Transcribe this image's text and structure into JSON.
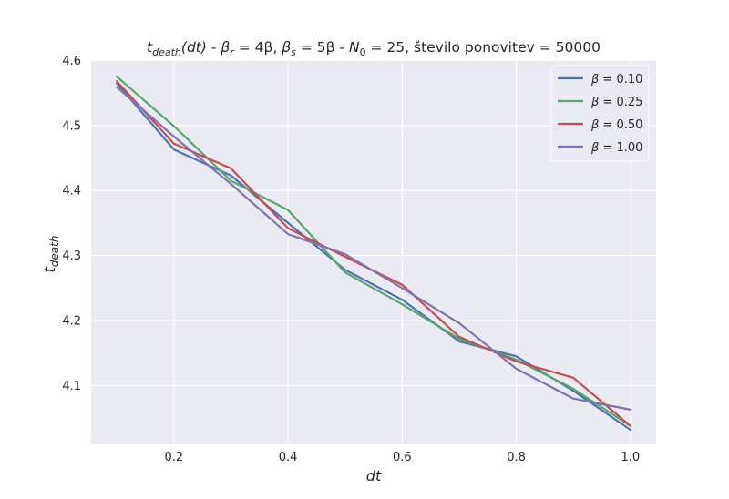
{
  "chart_data": {
    "type": "line",
    "title": "t_death(dt) - β_r = 4β, β_s = 5β - N_0 =  25, število ponovitev  = 50000",
    "title_parts": {
      "t": "t",
      "death_sub": "death",
      "dt_paren": "(dt)",
      "mid1": " - ",
      "beta_r": "β",
      "r_sub": "r",
      "eq_4beta": " = 4β, ",
      "beta_s": "β",
      "s_sub": "s",
      "eq_5beta": " = 5β",
      "mid2": " - ",
      "n": "N",
      "zero_sub": "0",
      "n_value": " =  25, število ponovitev  = 50000"
    },
    "xlabel": "dt",
    "ylabel": "t",
    "ylabel_sub": "death",
    "xlim": [
      0.055,
      1.045
    ],
    "ylim": [
      4.0096,
      4.6005
    ],
    "xticks": [
      0.2,
      0.4,
      0.6,
      0.8,
      1.0
    ],
    "xtick_labels": [
      "0.2",
      "0.4",
      "0.6",
      "0.8",
      "1.0"
    ],
    "yticks": [
      4.1,
      4.2,
      4.3,
      4.4,
      4.5,
      4.6
    ],
    "ytick_labels": [
      "4.1",
      "4.2",
      "4.3",
      "4.4",
      "4.5",
      "4.6"
    ],
    "grid": true,
    "legend_position": "top-right",
    "legend_prefix": "β = ",
    "x": [
      0.1,
      0.2,
      0.3,
      0.4,
      0.5,
      0.6,
      0.7,
      0.8,
      0.9,
      1.0
    ],
    "series": [
      {
        "name": "0.10",
        "color": "#4c72b0",
        "values": [
          4.565,
          4.463,
          4.423,
          4.35,
          4.278,
          4.232,
          4.168,
          4.145,
          4.092,
          4.032
        ]
      },
      {
        "name": "0.25",
        "color": "#55a868",
        "values": [
          4.575,
          4.499,
          4.415,
          4.37,
          4.274,
          4.225,
          4.172,
          4.14,
          4.095,
          4.038
        ]
      },
      {
        "name": "0.50",
        "color": "#c44e52",
        "values": [
          4.568,
          4.472,
          4.434,
          4.342,
          4.298,
          4.255,
          4.175,
          4.137,
          4.112,
          4.038
        ]
      },
      {
        "name": "1.00",
        "color": "#8172b2",
        "values": [
          4.559,
          4.483,
          4.41,
          4.333,
          4.302,
          4.25,
          4.196,
          4.126,
          4.08,
          4.063
        ]
      }
    ],
    "colors": {
      "plot_background": "#eaeaf2",
      "grid": "#ffffff",
      "text": "#262626"
    }
  }
}
